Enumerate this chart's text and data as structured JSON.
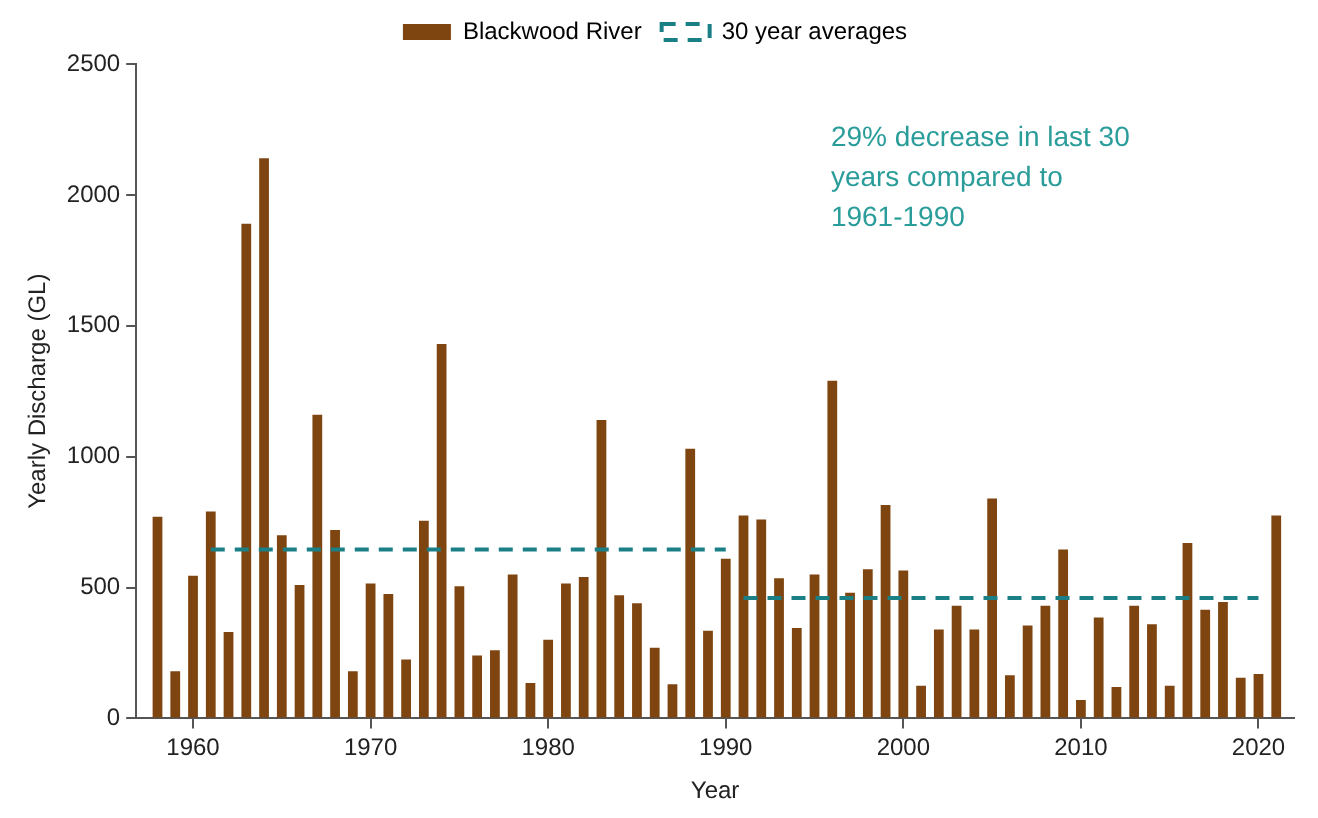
{
  "chart_data": {
    "type": "bar",
    "xlabel": "Year",
    "ylabel": "Yearly Discharge (GL)",
    "x": [
      1958,
      1959,
      1960,
      1961,
      1962,
      1963,
      1964,
      1965,
      1966,
      1967,
      1968,
      1969,
      1970,
      1971,
      1972,
      1973,
      1974,
      1975,
      1976,
      1977,
      1978,
      1979,
      1980,
      1981,
      1982,
      1983,
      1984,
      1985,
      1986,
      1987,
      1988,
      1989,
      1990,
      1991,
      1992,
      1993,
      1994,
      1995,
      1996,
      1997,
      1998,
      1999,
      2000,
      2001,
      2002,
      2003,
      2004,
      2005,
      2006,
      2007,
      2008,
      2009,
      2010,
      2011,
      2012,
      2013,
      2014,
      2015,
      2016,
      2017,
      2018,
      2019,
      2020,
      2021
    ],
    "series": [
      {
        "name": "Blackwood River",
        "color": "#7f4510",
        "values": [
          770,
          180,
          545,
          790,
          330,
          1890,
          2140,
          700,
          510,
          1160,
          720,
          180,
          515,
          475,
          225,
          755,
          1430,
          505,
          240,
          260,
          550,
          135,
          300,
          515,
          540,
          1140,
          470,
          440,
          270,
          130,
          1030,
          335,
          610,
          775,
          760,
          535,
          345,
          550,
          1290,
          480,
          570,
          815,
          565,
          125,
          340,
          430,
          340,
          840,
          165,
          355,
          430,
          645,
          70,
          385,
          120,
          430,
          360,
          125,
          670,
          415,
          445,
          155,
          170,
          775
        ]
      },
      {
        "name": "30 year averages",
        "type": "line",
        "color": "#1b7f86",
        "line_style": "dashed",
        "x": [
          1961,
          1990,
          1990.5,
          1991,
          2020
        ],
        "values": [
          645,
          645,
          null,
          460,
          460
        ]
      }
    ],
    "xlim": [
      1956.8,
      2022
    ],
    "xticks": [
      1960,
      1970,
      1980,
      1990,
      2000,
      2010,
      2020
    ],
    "ylim": [
      0,
      2500
    ],
    "yticks": [
      0,
      500,
      1000,
      1500,
      2000,
      2500
    ],
    "grid": false,
    "legend": "top",
    "marker": "none",
    "annotations": [
      "29% decrease in last 30 years compared to 1961-1990"
    ]
  }
}
